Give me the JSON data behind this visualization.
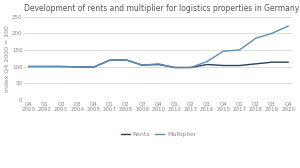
{
  "title": "Development of rents and multiplier for logistics properties in Germany in the index view",
  "ylabel": "Index Q4 2000 = 100",
  "x_labels": [
    "Q4\n2000",
    "Q1\n2002",
    "Q2\n2003",
    "Q3\n2004",
    "Q4\n2005",
    "Q1\n2007",
    "Q2\n2008",
    "Q3\n2009",
    "Q4\n2010",
    "Q1\n2012",
    "Q2\n2013",
    "Q3\n2014",
    "Q4\n2015",
    "Q1\n2017",
    "Q2\n2018",
    "Q3\n2019",
    "Q4\n2020"
  ],
  "rents": [
    100,
    100,
    100,
    99,
    98,
    119,
    120,
    104,
    106,
    97,
    97,
    106,
    103,
    103,
    108,
    113,
    113
  ],
  "multiplier": [
    100,
    100,
    100,
    99,
    98,
    119,
    120,
    104,
    108,
    97,
    97,
    115,
    146,
    150,
    185,
    200,
    222
  ],
  "rents_color": "#2e4057",
  "multiplier_color": "#5b8db8",
  "background_color": "#ffffff",
  "grid_color": "#d0d0d0",
  "ylim": [
    0,
    250
  ],
  "yticks": [
    0,
    50,
    100,
    150,
    200,
    250
  ],
  "legend_labels": [
    "Rents",
    "Multiplier"
  ],
  "title_fontsize": 5.5,
  "label_fontsize": 4.5,
  "tick_fontsize": 4.0,
  "legend_fontsize": 4.5
}
